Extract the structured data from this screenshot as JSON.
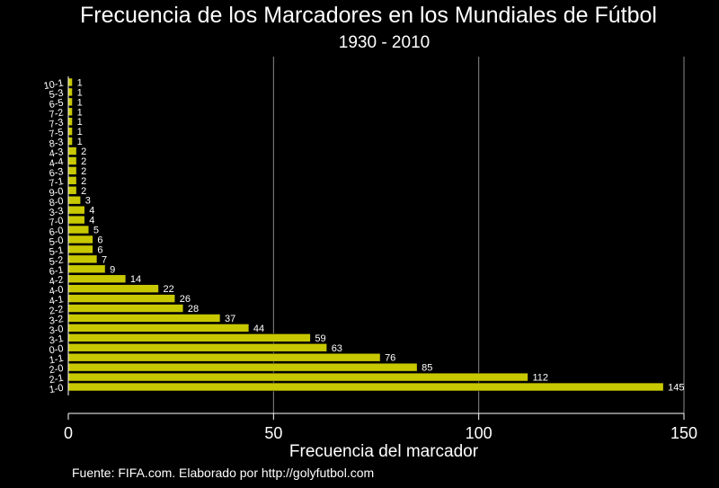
{
  "title": "Frecuencia de los Marcadores en los Mundiales de Fútbol",
  "subtitle": "1930 - 2010",
  "source": "Fuente: FIFA.com. Elaborado por http://golyfutbol.com",
  "chart_data": {
    "type": "bar",
    "orientation": "horizontal",
    "categories": [
      "1-0",
      "2-1",
      "2-0",
      "1-1",
      "0-0",
      "3-1",
      "3-0",
      "3-2",
      "2-2",
      "4-1",
      "4-0",
      "4-2",
      "6-1",
      "5-2",
      "5-1",
      "5-0",
      "6-0",
      "7-0",
      "3-3",
      "8-0",
      "9-0",
      "7-1",
      "6-3",
      "4-4",
      "4-3",
      "8-3",
      "7-5",
      "7-3",
      "7-2",
      "6-5",
      "5-3",
      "10-1"
    ],
    "values": [
      145,
      112,
      85,
      76,
      63,
      59,
      44,
      37,
      28,
      26,
      22,
      14,
      9,
      7,
      6,
      6,
      5,
      4,
      4,
      3,
      2,
      2,
      2,
      2,
      2,
      1,
      1,
      1,
      1,
      1,
      1,
      1
    ],
    "xlabel": "Frecuencia del marcador",
    "ylabel": "",
    "xlim": [
      0,
      150
    ],
    "xticks": [
      0,
      50,
      100,
      150
    ],
    "grid": true,
    "colors": {
      "bar": "#c8c800",
      "background": "#000000",
      "grid": "#8a8a8a",
      "text": "#ffffff"
    }
  }
}
